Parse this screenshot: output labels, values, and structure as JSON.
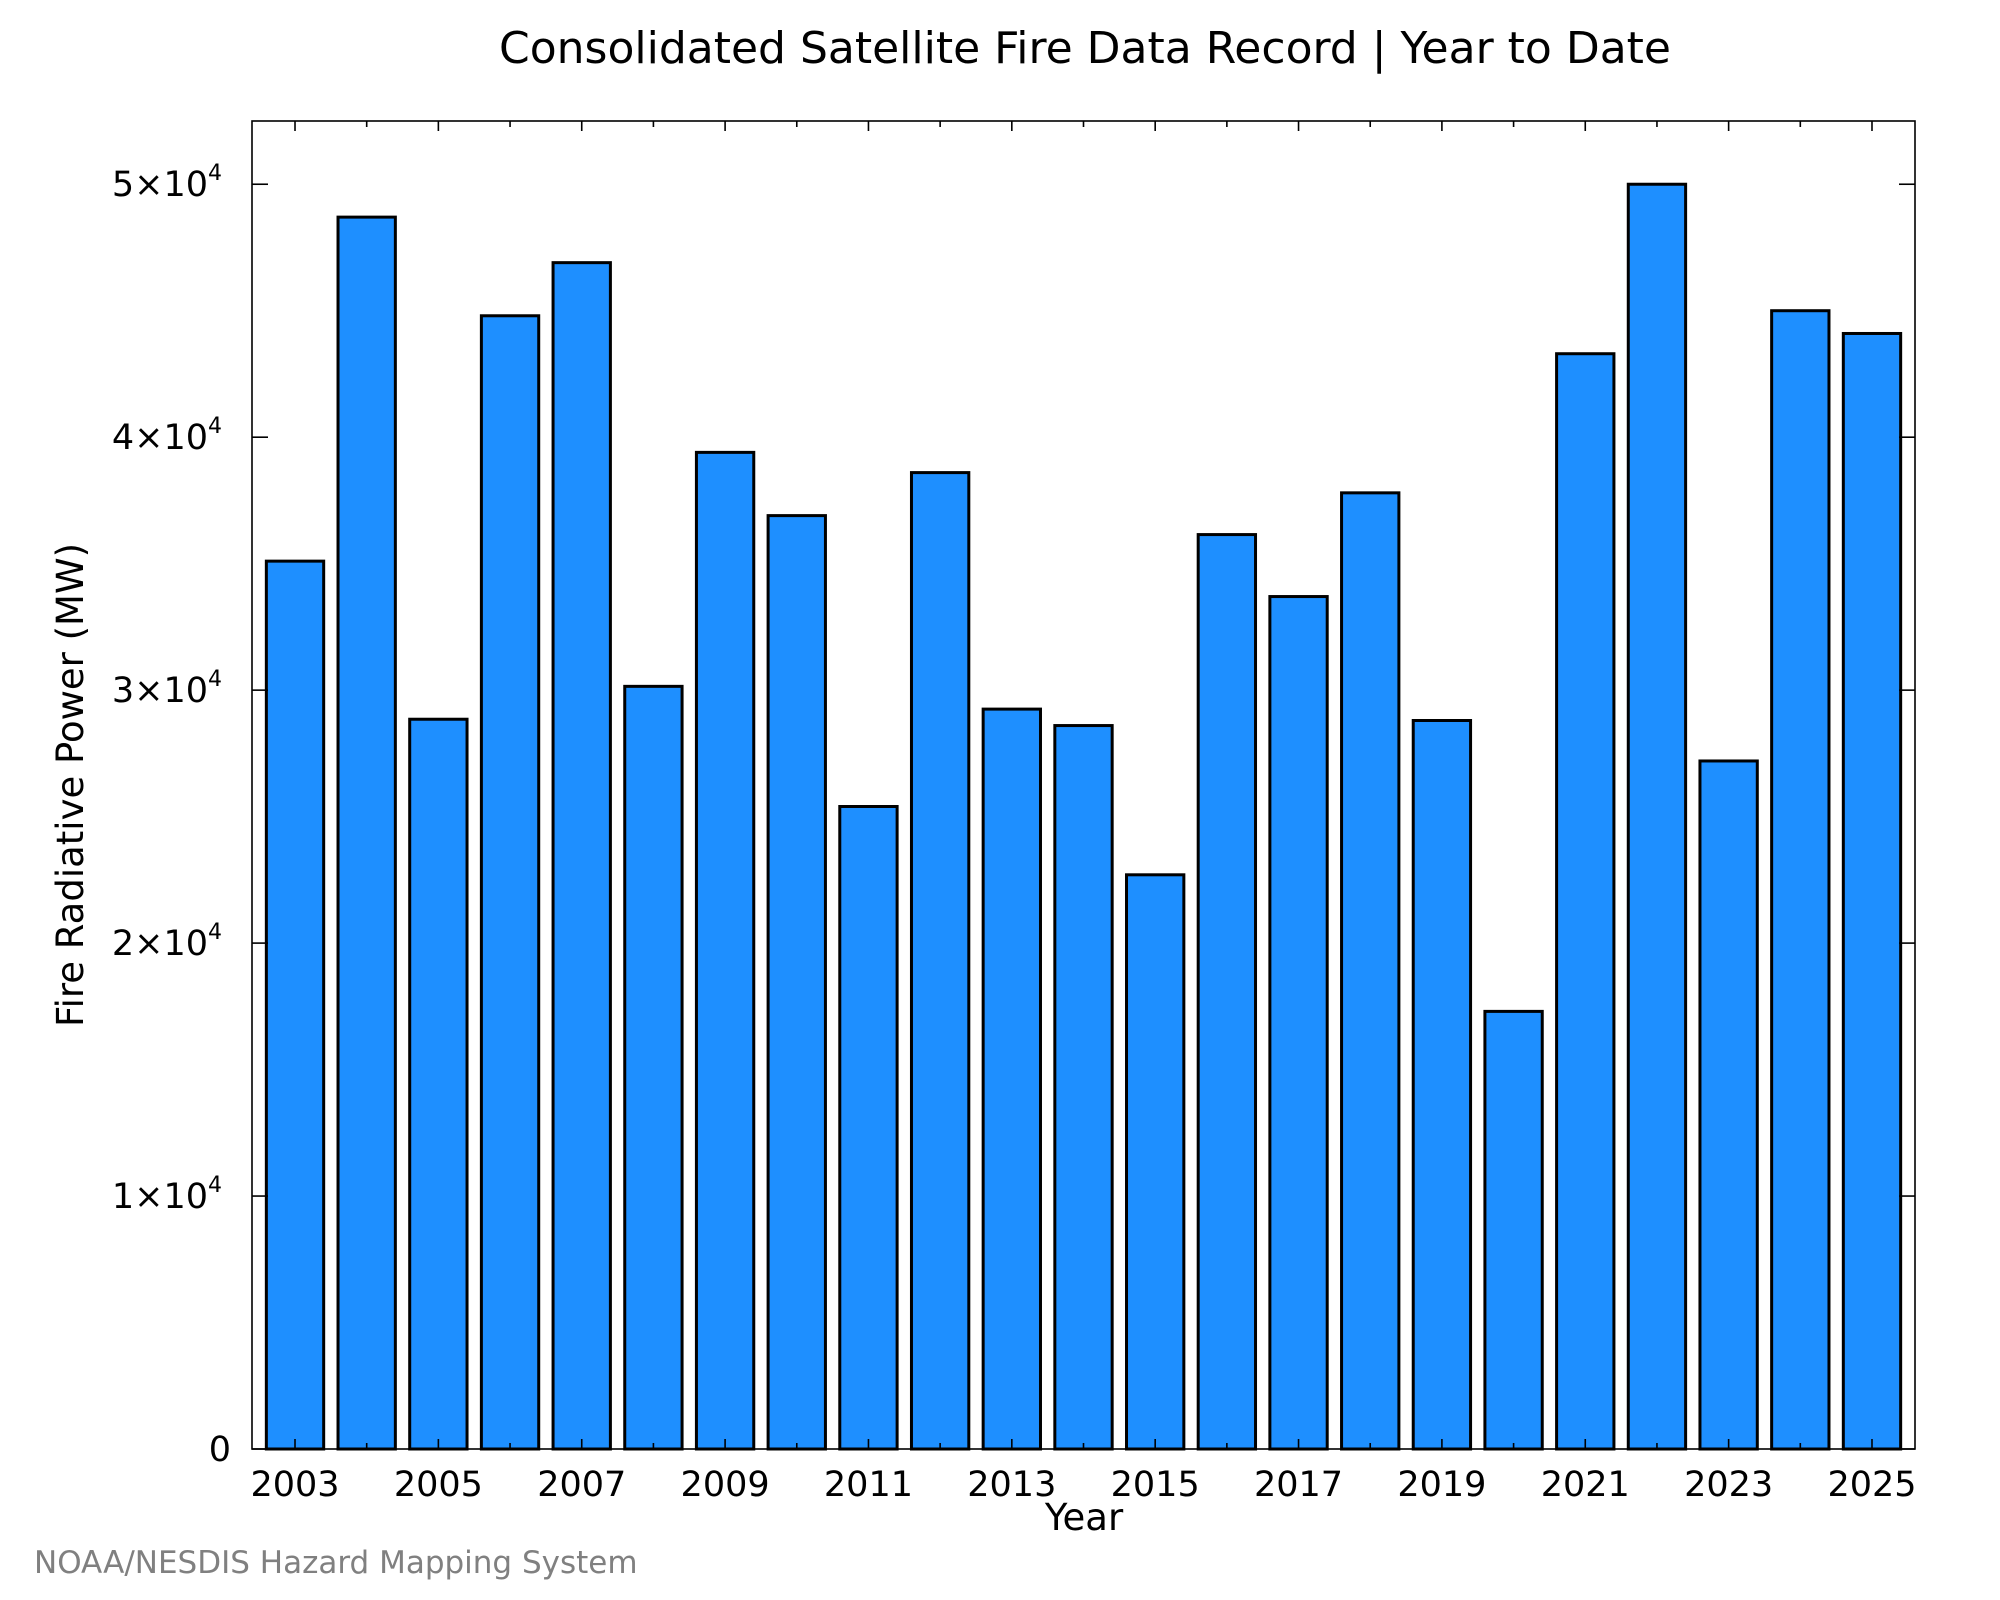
{
  "chart_data": {
    "type": "bar",
    "title": "Consolidated Satellite Fire Data Record | Year to Date",
    "xlabel": "Year",
    "ylabel": "Fire Radiative Power (MW)",
    "categories": [
      "2003",
      "2004",
      "2005",
      "2006",
      "2007",
      "2008",
      "2009",
      "2010",
      "2011",
      "2012",
      "2013",
      "2014",
      "2015",
      "2016",
      "2017",
      "2018",
      "2019",
      "2020",
      "2021",
      "2022",
      "2023",
      "2024",
      "2025"
    ],
    "values": [
      35100,
      48700,
      28850,
      44800,
      46900,
      30150,
      39400,
      36900,
      25400,
      38600,
      29250,
      28600,
      22700,
      36150,
      33700,
      37800,
      28800,
      17300,
      43300,
      50000,
      27200,
      45000,
      44100
    ],
    "bar_color": "#1E8FFF",
    "x_tick_labels": [
      "2003",
      "2005",
      "2007",
      "2009",
      "2011",
      "2013",
      "2015",
      "2017",
      "2019",
      "2021",
      "2023",
      "2025"
    ],
    "y_ticks": [
      {
        "value": 0,
        "mantissa": "0",
        "exponent": ""
      },
      {
        "value": 10000,
        "mantissa": "1×10",
        "exponent": "4"
      },
      {
        "value": 20000,
        "mantissa": "2×10",
        "exponent": "4"
      },
      {
        "value": 30000,
        "mantissa": "3×10",
        "exponent": "4"
      },
      {
        "value": 40000,
        "mantissa": "4×10",
        "exponent": "4"
      },
      {
        "value": 50000,
        "mantissa": "5×10",
        "exponent": "4"
      }
    ],
    "ylim": [
      0,
      52500
    ],
    "xlim": [
      2002.4,
      2025.6
    ],
    "grid": false,
    "legend": "none"
  },
  "credit": "NOAA/NESDIS Hazard Mapping System"
}
